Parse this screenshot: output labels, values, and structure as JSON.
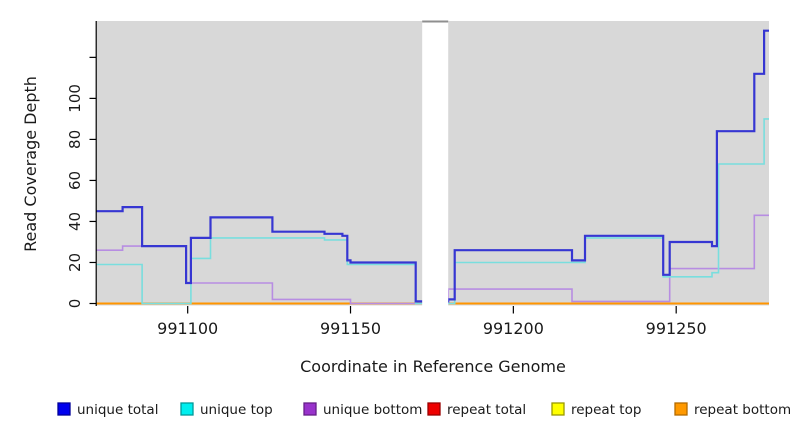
{
  "chart_data": {
    "type": "line",
    "subtype": "step",
    "title": "",
    "xlabel": "Coordinate in Reference Genome",
    "ylabel": "Read Coverage Depth",
    "xlim": [
      991072,
      991278.5
    ],
    "ylim": [
      0,
      137
    ],
    "x_ticks": [
      991100,
      991150,
      991200,
      991250
    ],
    "x_tick_labels": [
      "991100",
      "991150",
      "991200",
      "991250"
    ],
    "y_ticks": [
      0,
      20,
      40,
      60,
      80,
      100,
      120
    ],
    "y_tick_labels": [
      "0",
      "20",
      "40",
      "60",
      "80",
      "100",
      ""
    ],
    "grid": false,
    "plot_background": "#d8d8d8",
    "axis_color": "#000000",
    "legend_position": "bottom",
    "masked_region": {
      "x_start": 991172,
      "x_end": 991180,
      "color": "#ffffff",
      "cap_color": "#8f8f8f"
    },
    "series": [
      {
        "name": "repeat total",
        "line_color": "#ee0000",
        "line_width": 1.2,
        "swatch_fill": "#ee0000",
        "swatch_border": "#990000",
        "points": [
          [
            991072,
            0
          ],
          [
            991278.5,
            0
          ]
        ]
      },
      {
        "name": "repeat top",
        "line_color": "#eeee00",
        "line_width": 1.2,
        "swatch_fill": "#ffff00",
        "swatch_border": "#999900",
        "points": [
          [
            991072,
            0
          ],
          [
            991278.5,
            0
          ]
        ]
      },
      {
        "name": "repeat bottom",
        "line_color": "#ff9500",
        "line_width": 2,
        "swatch_fill": "#ff9900",
        "swatch_border": "#b36b00",
        "points": [
          [
            991072,
            0
          ],
          [
            991278.5,
            0
          ]
        ]
      },
      {
        "name": "unique bottom",
        "line_color": "#b78de2",
        "line_width": 1.6,
        "swatch_fill": "#9933cc",
        "swatch_border": "#661f88",
        "points": [
          [
            991072,
            26
          ],
          [
            991080,
            28
          ],
          [
            991099.5,
            10
          ],
          [
            991126,
            2
          ],
          [
            991150,
            0
          ],
          [
            991180,
            7
          ],
          [
            991218,
            1
          ],
          [
            991248,
            17
          ],
          [
            991274,
            43
          ],
          [
            991278.5,
            43
          ]
        ]
      },
      {
        "name": "unique top",
        "line_color": "#79dede",
        "line_width": 1.6,
        "swatch_fill": "#00eeee",
        "swatch_border": "#009999",
        "points": [
          [
            991072,
            19
          ],
          [
            991086,
            0
          ],
          [
            991101,
            22
          ],
          [
            991107,
            32
          ],
          [
            991142,
            31
          ],
          [
            991149,
            19
          ],
          [
            991170,
            0
          ],
          [
            991182,
            20
          ],
          [
            991222,
            32
          ],
          [
            991246,
            13
          ],
          [
            991261,
            15
          ],
          [
            991263,
            68
          ],
          [
            991277,
            90
          ],
          [
            991278.5,
            90
          ]
        ]
      },
      {
        "name": "unique total",
        "line_color": "#3636d2",
        "line_width": 2.2,
        "swatch_fill": "#0000ee",
        "swatch_border": "#000099",
        "points": [
          [
            991072,
            45
          ],
          [
            991080,
            47
          ],
          [
            991086,
            28
          ],
          [
            991099.5,
            10
          ],
          [
            991101,
            32
          ],
          [
            991107,
            42
          ],
          [
            991126,
            35
          ],
          [
            991142,
            34
          ],
          [
            991147.5,
            33
          ],
          [
            991149,
            21
          ],
          [
            991150,
            20
          ],
          [
            991170,
            1
          ],
          [
            991180,
            2
          ],
          [
            991182,
            26
          ],
          [
            991218,
            21
          ],
          [
            991222,
            33
          ],
          [
            991246,
            14
          ],
          [
            991248,
            30
          ],
          [
            991261,
            28
          ],
          [
            991262.5,
            84
          ],
          [
            991274,
            112
          ],
          [
            991277,
            133
          ],
          [
            991278.5,
            133
          ]
        ]
      }
    ],
    "legend": [
      {
        "label": "unique total"
      },
      {
        "label": "unique top"
      },
      {
        "label": "unique bottom"
      },
      {
        "label": "repeat total"
      },
      {
        "label": "repeat top"
      },
      {
        "label": "repeat bottom"
      }
    ]
  }
}
